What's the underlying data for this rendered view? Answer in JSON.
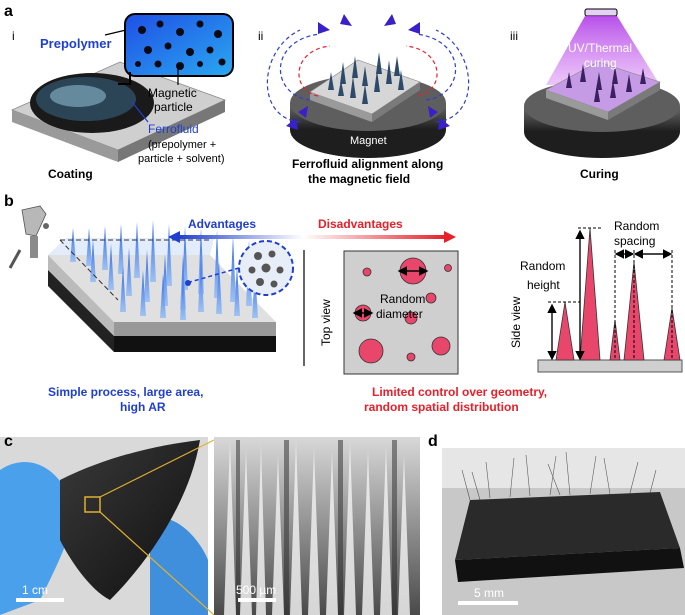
{
  "panel_labels": {
    "a": "a",
    "b": "b",
    "c": "c",
    "d": "d"
  },
  "panel_a": {
    "sub_i": "i",
    "sub_ii": "ii",
    "sub_iii": "iii",
    "prepolymer": "Prepolymer",
    "magnetic_particle_1": "Magnetic",
    "magnetic_particle_2": "particle",
    "ferrofluid": "Ferrofluid",
    "ferrofluid_note_1": "(prepolymer +",
    "ferrofluid_note_2": "particle + solvent)",
    "coating": "Coating",
    "magnet": "Magnet",
    "alignment_1": "Ferrofluid alignment along",
    "alignment_2": "the magnetic field",
    "uv_1": "UV/Thermal",
    "uv_2": "curing",
    "curing": "Curing"
  },
  "panel_b": {
    "advantages": "Advantages",
    "disadvantages": "Disadvantages",
    "top_view": "Top view",
    "random_diameter_1": "Random",
    "random_diameter_2": "diameter",
    "side_view": "Side view",
    "random_height_1": "Random",
    "random_height_2": "height",
    "random_spacing_1": "Random",
    "random_spacing_2": "spacing",
    "simple_1": "Simple process, large area,",
    "simple_2": "high AR",
    "limited_1": "Limited control over geometry,",
    "limited_2": "random spatial distribution"
  },
  "panel_c": {
    "scale_left": "1 cm",
    "scale_right": "500 µm"
  },
  "panel_d": {
    "scale": "5 mm"
  },
  "colors": {
    "blue": "#1f3fd0",
    "red": "#e8202a",
    "pink": "#e8476b",
    "purple": "#8a3fd6"
  }
}
